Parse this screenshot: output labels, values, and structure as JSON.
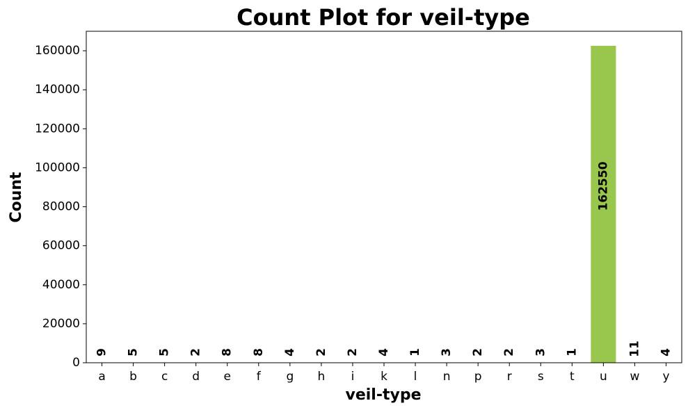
{
  "chart_data": {
    "type": "bar",
    "title": "Count Plot for veil-type",
    "xlabel": "veil-type",
    "ylabel": "Count",
    "categories": [
      "a",
      "b",
      "c",
      "d",
      "e",
      "f",
      "g",
      "h",
      "i",
      "k",
      "l",
      "n",
      "p",
      "r",
      "s",
      "t",
      "u",
      "w",
      "y"
    ],
    "values": [
      9,
      5,
      5,
      2,
      8,
      8,
      4,
      2,
      2,
      4,
      1,
      3,
      2,
      2,
      3,
      1,
      162550,
      11,
      4
    ],
    "ylim": [
      0,
      170000
    ],
    "yticks": [
      0,
      20000,
      40000,
      60000,
      80000,
      100000,
      120000,
      140000,
      160000
    ],
    "bar_color": "#99c64c",
    "grid": false,
    "legend": false
  }
}
